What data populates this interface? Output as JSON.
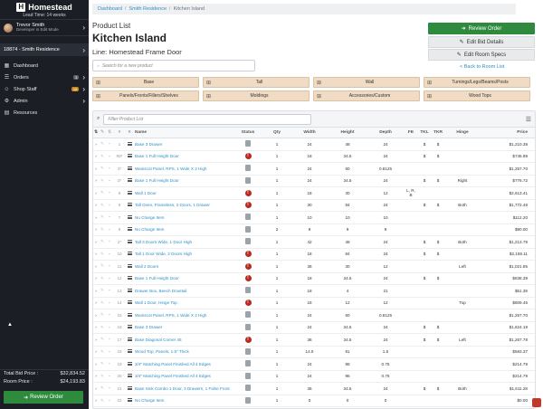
{
  "sidebar": {
    "brand_name": "Homestead",
    "lead_time": "Lead Time: 14 weeks",
    "user_name": "Trevor Smith",
    "user_role": "Developer in Edit Mode",
    "project": "18874 - Smith Residence",
    "nav": [
      {
        "label": "Dashboard",
        "icon": "dashboard-icon",
        "glyph": "▦"
      },
      {
        "label": "Orders",
        "icon": "orders-icon",
        "glyph": "☰",
        "badge": "3"
      },
      {
        "label": "Shop Staff",
        "icon": "staff-icon",
        "glyph": "☺",
        "badge": "16"
      },
      {
        "label": "Admin",
        "icon": "admin-icon",
        "glyph": "⚙"
      },
      {
        "label": "Resources",
        "icon": "resources-icon",
        "glyph": "▤"
      }
    ],
    "total_bid_label": "Total Bid Price :",
    "total_bid_value": "$32,834.52",
    "room_price_label": "Room Price :",
    "room_price_value": "$24,193.83",
    "review_order": "Review Order"
  },
  "breadcrumb": {
    "dashboard": "Dashboard",
    "residence": "Smith Residence",
    "room": "Kitchen Island"
  },
  "header": {
    "list_title": "Product List",
    "room_title": "Kitchen Island",
    "line_label": "Line: Homestead Frame Door"
  },
  "search_placeholder": "Search for a new product",
  "actions": {
    "review_order": "Review Order",
    "edit_bid": "Edit Bid Details",
    "edit_room": "Edit Room Specs",
    "back": "< Back to Room List"
  },
  "categories_row1": [
    "Base",
    "Tall",
    "Wall",
    "Turnings/Legs/Beams/Posts"
  ],
  "categories_row2": [
    "Panels/Fronts/Fillers/Shelves",
    "Moldings",
    "Accessories/Custom",
    "Wood Tops"
  ],
  "filter_placeholder": "Filter Product List",
  "columns": {
    "name": "Name",
    "status": "Status",
    "qty": "Qty",
    "width": "Width",
    "height": "Height",
    "depth": "Depth",
    "fe": "FE",
    "tkl": "TKL",
    "tkr": "TKR",
    "hinge": "Hinge",
    "price": "Price"
  },
  "rows": [
    {
      "num": "1",
      "name": "Base 3 Drawer",
      "status": "doc",
      "qty": "1",
      "width": "24",
      "height": "48",
      "depth": "24",
      "fe": "",
      "tkl": "$",
      "tkr": "$",
      "hinge": "",
      "price": "$1,210.38"
    },
    {
      "num": "99*",
      "name": "Base 1 Full Height Door",
      "status": "warn",
      "qty": "1",
      "width": "18",
      "height": "34.5",
      "depth": "24",
      "fe": "",
      "tkl": "$",
      "tkr": "$",
      "hinge": "",
      "price": "$745.99"
    },
    {
      "num": "3*",
      "name": "Wainscot Panel, RPS, 1 Wide X 2 High",
      "status": "doc",
      "qty": "1",
      "width": "24",
      "height": "60",
      "depth": "0.8125",
      "fe": "",
      "tkl": "",
      "tkr": "",
      "hinge": "",
      "price": "$1,257.70"
    },
    {
      "num": "3*",
      "name": "Base 1 Full Height Door",
      "status": "doc",
      "qty": "1",
      "width": "24",
      "height": "34.5",
      "depth": "24",
      "fe": "",
      "tkl": "$",
      "tkr": "$",
      "hinge": "Right",
      "price": "$776.72"
    },
    {
      "num": "5",
      "name": "Wall 1 Door",
      "status": "warn",
      "qty": "1",
      "width": "18",
      "height": "30",
      "depth": "12",
      "fe": "L, R, B",
      "tkl": "",
      "tkr": "",
      "hinge": "",
      "price": "$2,613.41"
    },
    {
      "num": "6",
      "name": "Tall Oven, Frameless, 2 Doors, 1 Drawer",
      "status": "warn",
      "qty": "1",
      "width": "30",
      "height": "84",
      "depth": "24",
      "fe": "",
      "tkl": "$",
      "tkr": "$",
      "hinge": "Both",
      "price": "$1,772.48"
    },
    {
      "num": "7",
      "name": "No Charge Item",
      "status": "doc",
      "qty": "1",
      "width": "10",
      "height": "10",
      "depth": "10",
      "fe": "",
      "tkl": "",
      "tkr": "",
      "hinge": "",
      "price": "$112.20"
    },
    {
      "num": "8",
      "name": "No Charge Item",
      "status": "doc",
      "qty": "2",
      "width": "9",
      "height": "9",
      "depth": "9",
      "fe": "",
      "tkl": "",
      "tkr": "",
      "hinge": "",
      "price": "$90.00"
    },
    {
      "num": "2*",
      "name": "Tall 3 Doors Wide, 1 Door High",
      "status": "doc",
      "qty": "1",
      "width": "42",
      "height": "48",
      "depth": "24",
      "fe": "",
      "tkl": "$",
      "tkr": "$",
      "hinge": "Both",
      "price": "$1,213.79"
    },
    {
      "num": "10",
      "name": "Tall 1 Door Wide, 2 Doors High",
      "status": "warn",
      "qty": "1",
      "width": "18",
      "height": "84",
      "depth": "24",
      "fe": "",
      "tkl": "$",
      "tkr": "$",
      "hinge": "",
      "price": "$2,159.11"
    },
    {
      "num": "11",
      "name": "Wall 2 Doors",
      "status": "warn",
      "qty": "1",
      "width": "36",
      "height": "30",
      "depth": "12",
      "fe": "",
      "tkl": "",
      "tkr": "",
      "hinge": "Left",
      "price": "$1,021.85"
    },
    {
      "num": "12",
      "name": "Base 1 Full Height Door",
      "status": "warn",
      "qty": "1",
      "width": "18",
      "height": "34.5",
      "depth": "24",
      "fe": "",
      "tkl": "$",
      "tkr": "$",
      "hinge": "",
      "price": "$838.39"
    },
    {
      "num": "13",
      "name": "Drawer Box, Beech Dovetail",
      "status": "doc",
      "qty": "1",
      "width": "18",
      "height": "4",
      "depth": "21",
      "fe": "",
      "tkl": "",
      "tkr": "",
      "hinge": "",
      "price": "$51.39"
    },
    {
      "num": "14",
      "name": "Wall 1 Door, Hinge Top",
      "status": "warn",
      "qty": "1",
      "width": "18",
      "height": "12",
      "depth": "12",
      "fe": "",
      "tkl": "",
      "tkr": "",
      "hinge": "Top",
      "price": "$809.45"
    },
    {
      "num": "15",
      "name": "Wainscot Panel, RPS, 1 Wide X 2 High",
      "status": "doc",
      "qty": "1",
      "width": "24",
      "height": "60",
      "depth": "0.8125",
      "fe": "",
      "tkl": "",
      "tkr": "",
      "hinge": "",
      "price": "$1,257.70"
    },
    {
      "num": "16",
      "name": "Base 3 Drawer",
      "status": "doc",
      "qty": "1",
      "width": "24",
      "height": "34.5",
      "depth": "24",
      "fe": "",
      "tkl": "$",
      "tkr": "$",
      "hinge": "",
      "price": "$1,624.19"
    },
    {
      "num": "17",
      "name": "Base Diagonal Corner 45",
      "status": "warn",
      "qty": "1",
      "width": "36",
      "height": "34.5",
      "depth": "24",
      "fe": "",
      "tkl": "$",
      "tkr": "$",
      "hinge": "Left",
      "price": "$1,267.78"
    },
    {
      "num": "18",
      "name": "Wood Top, Panels, 1.5\" Thick",
      "status": "doc",
      "qty": "1",
      "width": "14.5",
      "height": "81",
      "depth": "1.5",
      "fe": "",
      "tkl": "",
      "tkr": "",
      "hinge": "",
      "price": "$583.37"
    },
    {
      "num": "19",
      "name": "3/4\" Matching Panel Finished All 4 Edges",
      "status": "doc",
      "qty": "1",
      "width": "24",
      "height": "95",
      "depth": "0.75",
      "fe": "",
      "tkl": "",
      "tkr": "",
      "hinge": "",
      "price": "$214.79"
    },
    {
      "num": "20",
      "name": "3/4\" Matching Panel Finished All 4 Edges",
      "status": "doc",
      "qty": "1",
      "width": "24",
      "height": "95",
      "depth": "0.75",
      "fe": "",
      "tkl": "",
      "tkr": "",
      "hinge": "",
      "price": "$214.79"
    },
    {
      "num": "21",
      "name": "Base Sink Combo 1 Door, 3 Drawers, 1 False Front",
      "status": "doc",
      "qty": "1",
      "width": "36",
      "height": "34.5",
      "depth": "24",
      "fe": "",
      "tkl": "$",
      "tkr": "$",
      "hinge": "Both",
      "price": "$1,611.28"
    },
    {
      "num": "22",
      "name": "No Charge Item",
      "status": "doc",
      "qty": "1",
      "width": "0",
      "height": "0",
      "depth": "0",
      "fe": "",
      "tkl": "",
      "tkr": "",
      "hinge": "",
      "price": "$0.00"
    }
  ]
}
